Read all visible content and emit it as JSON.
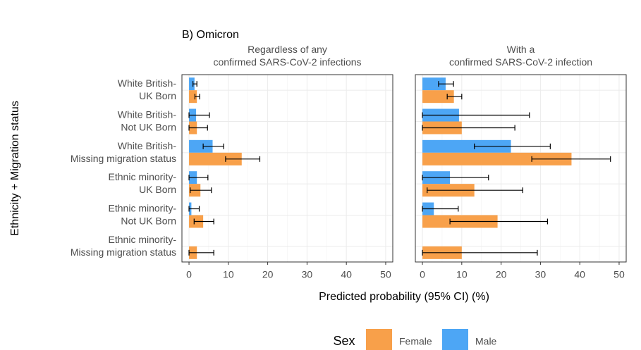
{
  "title": "B) Omicron",
  "x_label": "Predicted probability (95% CI) (%)",
  "y_label": "Ethnicity + Migration status",
  "legend_title": "Sex",
  "chart_data": [
    {
      "type": "bar",
      "orientation": "horizontal",
      "subtitle": "Regardless of any\nconfirmed SARS-CoV-2 infections",
      "categories": [
        "White British-\nUK Born",
        "White British-\nNot UK Born",
        "White British-\nMissing migration status",
        "Ethnic minority-\nUK Born",
        "Ethnic minority-\nNot UK Born",
        "Ethnic minority-\nMissing migration status"
      ],
      "series": [
        {
          "name": "Male",
          "color": "#4da6f5",
          "values": [
            1.4,
            1.8,
            6.0,
            2.0,
            0.6,
            null
          ],
          "ci_low": [
            1.0,
            0,
            3.6,
            0,
            0,
            null
          ],
          "ci_high": [
            2.0,
            5.2,
            8.8,
            4.8,
            2.6,
            null
          ]
        },
        {
          "name": "Female",
          "color": "#f8a04a",
          "values": [
            2.0,
            2.0,
            13.4,
            2.9,
            3.6,
            2.0
          ],
          "ci_low": [
            1.5,
            0,
            9.3,
            0.3,
            1.3,
            0
          ],
          "ci_high": [
            2.7,
            4.7,
            18.0,
            5.7,
            6.3,
            6.3
          ]
        }
      ],
      "xlim": [
        -1.8,
        51.8
      ],
      "xticks": [
        0,
        10,
        20,
        30,
        40,
        50
      ],
      "grid": true
    },
    {
      "type": "bar",
      "orientation": "horizontal",
      "subtitle": "With a\nconfirmed SARS-CoV-2 infection",
      "series": [
        {
          "color": "#4da6f5",
          "values": [
            5.9,
            9.3,
            22.5,
            7.0,
            2.9,
            null
          ],
          "ci_low": [
            4.1,
            0,
            13.2,
            0,
            0,
            null
          ],
          "ci_high": [
            7.9,
            27.2,
            32.5,
            16.8,
            9.1,
            null
          ]
        },
        {
          "color": "#f8a04a",
          "values": [
            8.0,
            10.0,
            37.9,
            13.2,
            19.1,
            10.0
          ],
          "ci_low": [
            6.3,
            0,
            27.8,
            1.2,
            7.0,
            0
          ],
          "ci_high": [
            10.0,
            23.5,
            47.8,
            25.5,
            31.8,
            29.2
          ]
        }
      ],
      "xlim": [
        -1.8,
        51.8
      ],
      "xticks": [
        0,
        10,
        20,
        30,
        40,
        50
      ],
      "grid": true
    }
  ]
}
